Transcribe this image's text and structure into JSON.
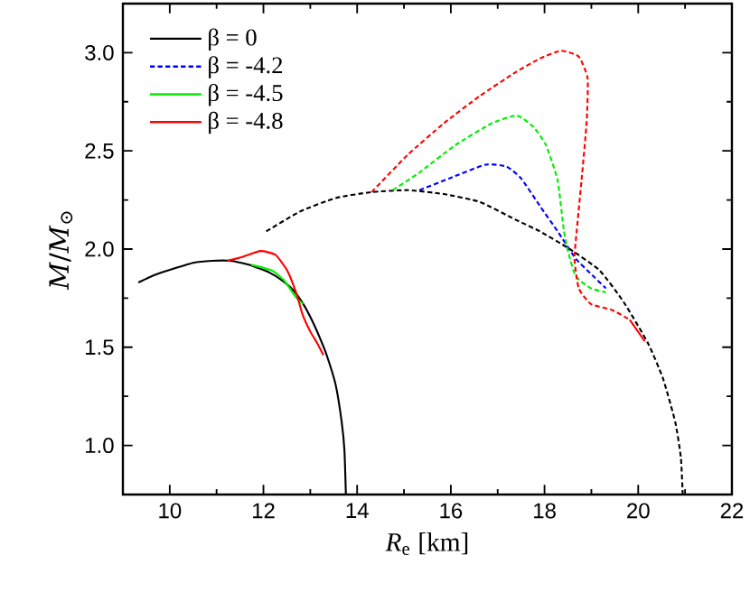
{
  "chart_data": {
    "type": "line",
    "xlabel": "*R*$_{e}$ [km]",
    "ylabel": "*M*/*M*$_{⊙}$",
    "xlim": [
      9,
      22
    ],
    "ylim": [
      0.75,
      3.25
    ],
    "xticks": [
      10,
      12,
      14,
      16,
      18,
      20,
      22
    ],
    "yticks": [
      {
        "value": 1.0,
        "label": "1.0"
      },
      {
        "value": 1.5,
        "label": "1.5"
      },
      {
        "value": 2.0,
        "label": "2.0"
      },
      {
        "value": 2.5,
        "label": "2.5"
      },
      {
        "value": 3.0,
        "label": "3.0"
      }
    ],
    "legend": "top left",
    "grid": false,
    "series": [
      {
        "name": "β = 0",
        "color": "#000000",
        "line_style": "solid",
        "x": [
          9.33,
          9.7,
          10.08,
          10.5,
          10.9,
          11.3,
          11.7,
          12.13,
          12.4,
          12.64,
          12.85,
          13.03,
          13.2,
          13.35,
          13.54,
          13.67,
          13.73,
          13.76
        ],
        "values": [
          1.83,
          1.87,
          1.9,
          1.93,
          1.94,
          1.94,
          1.92,
          1.88,
          1.84,
          1.79,
          1.72,
          1.64,
          1.55,
          1.46,
          1.31,
          1.12,
          0.97,
          0.75
        ]
      },
      {
        "name": "β = -4.2",
        "color": "#0000ff",
        "line_style": "dashed",
        "x": [
          15.33,
          15.97,
          16.74,
          17.19,
          17.5,
          17.9,
          18.28,
          18.67,
          19.05,
          19.31
        ],
        "values": [
          2.3,
          2.36,
          2.43,
          2.42,
          2.36,
          2.22,
          2.09,
          1.95,
          1.86,
          1.8
        ]
      },
      {
        "name": "β = -4.5",
        "color": "#00ee00",
        "line_style": "solid",
        "x": [
          11.74,
          12.19,
          12.44,
          12.71,
          12.85
        ],
        "values": [
          1.92,
          1.89,
          1.84,
          1.75,
          1.72
        ]
      },
      {
        "name": "β = -4.8",
        "color": "#ff0000",
        "line_style": "solid",
        "x": [
          11.23,
          11.55,
          11.94,
          12.26,
          12.51,
          12.71,
          12.83,
          13.0,
          13.15,
          13.28
        ],
        "values": [
          1.94,
          1.96,
          1.99,
          1.97,
          1.89,
          1.77,
          1.67,
          1.58,
          1.52,
          1.46
        ]
      },
      {
        "color": "#000000",
        "line_style": "dashed",
        "x": [
          12.06,
          12.77,
          13.54,
          14.31,
          15.08,
          15.85,
          16.62,
          17.38,
          17.9,
          18.54,
          19.18,
          19.69,
          20.21,
          20.53,
          20.79,
          20.91,
          20.95
        ],
        "values": [
          2.09,
          2.19,
          2.26,
          2.29,
          2.3,
          2.28,
          2.24,
          2.15,
          2.09,
          2.0,
          1.89,
          1.73,
          1.52,
          1.34,
          1.12,
          0.94,
          0.75
        ]
      },
      {
        "color": "#00ee00",
        "line_style": "dashed",
        "x": [
          14.76,
          15.33,
          16.1,
          16.87,
          17.41,
          17.77,
          18.03,
          18.28,
          18.41,
          18.51,
          18.67,
          18.99,
          19.31
        ],
        "values": [
          2.3,
          2.39,
          2.53,
          2.64,
          2.68,
          2.62,
          2.53,
          2.35,
          2.1,
          1.98,
          1.86,
          1.8,
          1.78
        ]
      },
      {
        "color": "#ff0000",
        "line_style": "dashed",
        "x": [
          14.31,
          15.08,
          15.85,
          16.62,
          17.38,
          17.9,
          18.35,
          18.73,
          18.92,
          18.9,
          18.79,
          18.69,
          18.64,
          18.73,
          18.99,
          19.44,
          19.82
        ],
        "values": [
          2.29,
          2.48,
          2.64,
          2.78,
          2.9,
          2.97,
          3.01,
          2.98,
          2.87,
          2.65,
          2.35,
          2.1,
          1.95,
          1.8,
          1.72,
          1.69,
          1.64
        ]
      },
      {
        "color": "#ff0000",
        "line_style": "solid",
        "x": [
          19.82,
          20.14
        ],
        "values": [
          1.64,
          1.53
        ]
      }
    ]
  }
}
